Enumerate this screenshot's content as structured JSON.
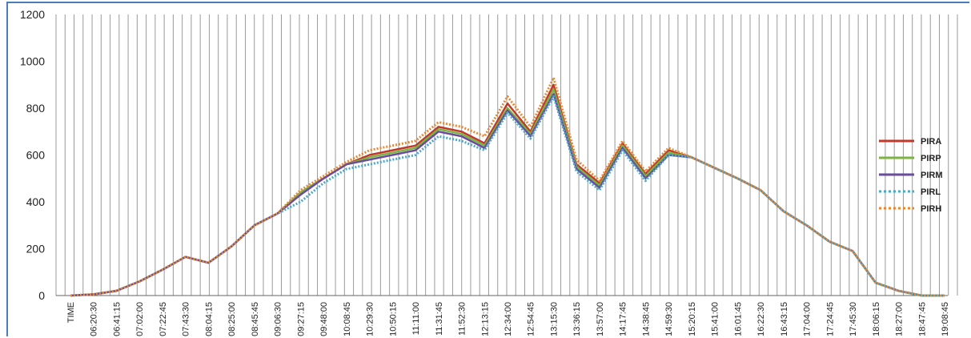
{
  "chart_data": {
    "type": "line",
    "title": "",
    "xlabel": "",
    "ylabel": "",
    "ylim": [
      0,
      1200
    ],
    "yticks": [
      0,
      200,
      400,
      600,
      800,
      1000,
      1200
    ],
    "grid": "vertical",
    "legend": "right",
    "x_tick_labels": [
      "TIME",
      "06:20:30",
      "06:41:15",
      "07:02:00",
      "07:22:45",
      "07:43:30",
      "08:04:15",
      "08:25:00",
      "08:45:45",
      "09:06:30",
      "09:27:15",
      "09:48:00",
      "10:08:45",
      "10:29:30",
      "10:50:15",
      "11:11:00",
      "11:31:45",
      "11:52:30",
      "12:13:15",
      "12:34:00",
      "12:54:45",
      "13:15:30",
      "13:36:15",
      "13:57:00",
      "14:17:45",
      "14:38:45",
      "14:59:30",
      "15:20:15",
      "15:41:00",
      "16:01:45",
      "16:22:30",
      "16:43:15",
      "17:04:00",
      "17:24:45",
      "17:45:30",
      "18:06:15",
      "18:27:00",
      "18:47:45",
      "19:08:45"
    ],
    "x": [
      "TIME",
      "06:20:30",
      "06:41:15",
      "07:02:00",
      "07:22:45",
      "07:43:30",
      "08:04:15",
      "08:25:00",
      "08:45:45",
      "09:06:30",
      "09:27:15",
      "09:48:00",
      "10:08:45",
      "10:29:30",
      "10:50:15",
      "11:11:00",
      "11:31:45",
      "11:52:30",
      "12:13:15",
      "12:34:00",
      "12:54:45",
      "13:15:30",
      "13:36:15",
      "13:57:00",
      "14:17:45",
      "14:38:45",
      "14:59:30",
      "15:20:15",
      "15:41:00",
      "16:01:45",
      "16:22:30",
      "16:43:15",
      "17:04:00",
      "17:24:45",
      "17:45:30",
      "18:06:15",
      "18:27:00",
      "18:47:45",
      "19:08:45"
    ],
    "series": [
      {
        "name": "PIRA",
        "color": "#c0392b",
        "dash": "solid",
        "values": [
          0,
          5,
          20,
          60,
          110,
          165,
          140,
          210,
          300,
          350,
          440,
          500,
          560,
          600,
          620,
          640,
          720,
          700,
          650,
          820,
          700,
          900,
          560,
          480,
          650,
          520,
          620,
          590,
          545,
          500,
          450,
          360,
          300,
          230,
          190,
          55,
          20,
          0,
          0
        ]
      },
      {
        "name": "PIRP",
        "color": "#7cb342",
        "dash": "solid",
        "values": [
          0,
          5,
          20,
          60,
          110,
          165,
          140,
          210,
          300,
          350,
          440,
          500,
          560,
          590,
          610,
          630,
          710,
          690,
          640,
          800,
          690,
          880,
          550,
          470,
          640,
          510,
          610,
          590,
          545,
          500,
          450,
          360,
          300,
          230,
          190,
          55,
          20,
          0,
          0
        ]
      },
      {
        "name": "PIRM",
        "color": "#6a4c9c",
        "dash": "solid",
        "values": [
          0,
          5,
          20,
          60,
          110,
          165,
          140,
          210,
          300,
          350,
          430,
          500,
          560,
          580,
          600,
          620,
          700,
          680,
          630,
          790,
          680,
          860,
          540,
          460,
          630,
          500,
          600,
          590,
          545,
          500,
          450,
          360,
          300,
          230,
          190,
          55,
          20,
          0,
          0
        ]
      },
      {
        "name": "PIRL",
        "color": "#4aa8c8",
        "dash": "dotted",
        "values": [
          0,
          5,
          20,
          60,
          110,
          165,
          140,
          210,
          300,
          350,
          400,
          480,
          540,
          560,
          580,
          600,
          680,
          660,
          620,
          780,
          670,
          850,
          530,
          450,
          620,
          490,
          600,
          590,
          545,
          500,
          450,
          360,
          300,
          230,
          190,
          55,
          20,
          0,
          0
        ]
      },
      {
        "name": "PIRH",
        "color": "#e8872e",
        "dash": "dotted",
        "values": [
          0,
          5,
          20,
          60,
          110,
          165,
          140,
          210,
          300,
          350,
          450,
          510,
          570,
          620,
          640,
          660,
          740,
          720,
          680,
          850,
          720,
          930,
          580,
          490,
          660,
          530,
          630,
          590,
          545,
          500,
          450,
          360,
          300,
          230,
          190,
          55,
          20,
          0,
          0
        ]
      }
    ]
  }
}
